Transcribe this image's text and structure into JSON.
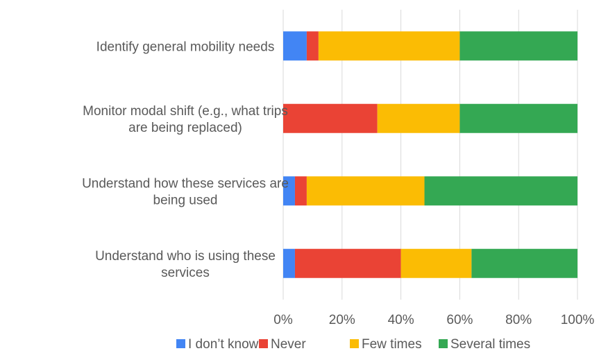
{
  "chart_data": {
    "type": "bar",
    "orientation": "horizontal",
    "stacked": "percent",
    "categories": [
      [
        "Identify general mobility needs"
      ],
      [
        "Monitor modal shift (e.g., what trips",
        "are being replaced)"
      ],
      [
        "Understand how these services are",
        "being used"
      ],
      [
        "Understand who is using these",
        "services"
      ]
    ],
    "series": [
      {
        "name": "I don’t know",
        "color": "#4285F4",
        "values": [
          8,
          0,
          4,
          4
        ]
      },
      {
        "name": "Never",
        "color": "#EA4335",
        "values": [
          4,
          32,
          4,
          36
        ]
      },
      {
        "name": "Few times",
        "color": "#FBBC04",
        "values": [
          48,
          28,
          40,
          24
        ]
      },
      {
        "name": "Several times",
        "color": "#34A853",
        "values": [
          40,
          40,
          52,
          36
        ]
      }
    ],
    "x_ticks": [
      "0%",
      "20%",
      "40%",
      "60%",
      "80%",
      "100%"
    ],
    "xlim": [
      0,
      100
    ],
    "grid": true,
    "legend_position": "bottom"
  }
}
